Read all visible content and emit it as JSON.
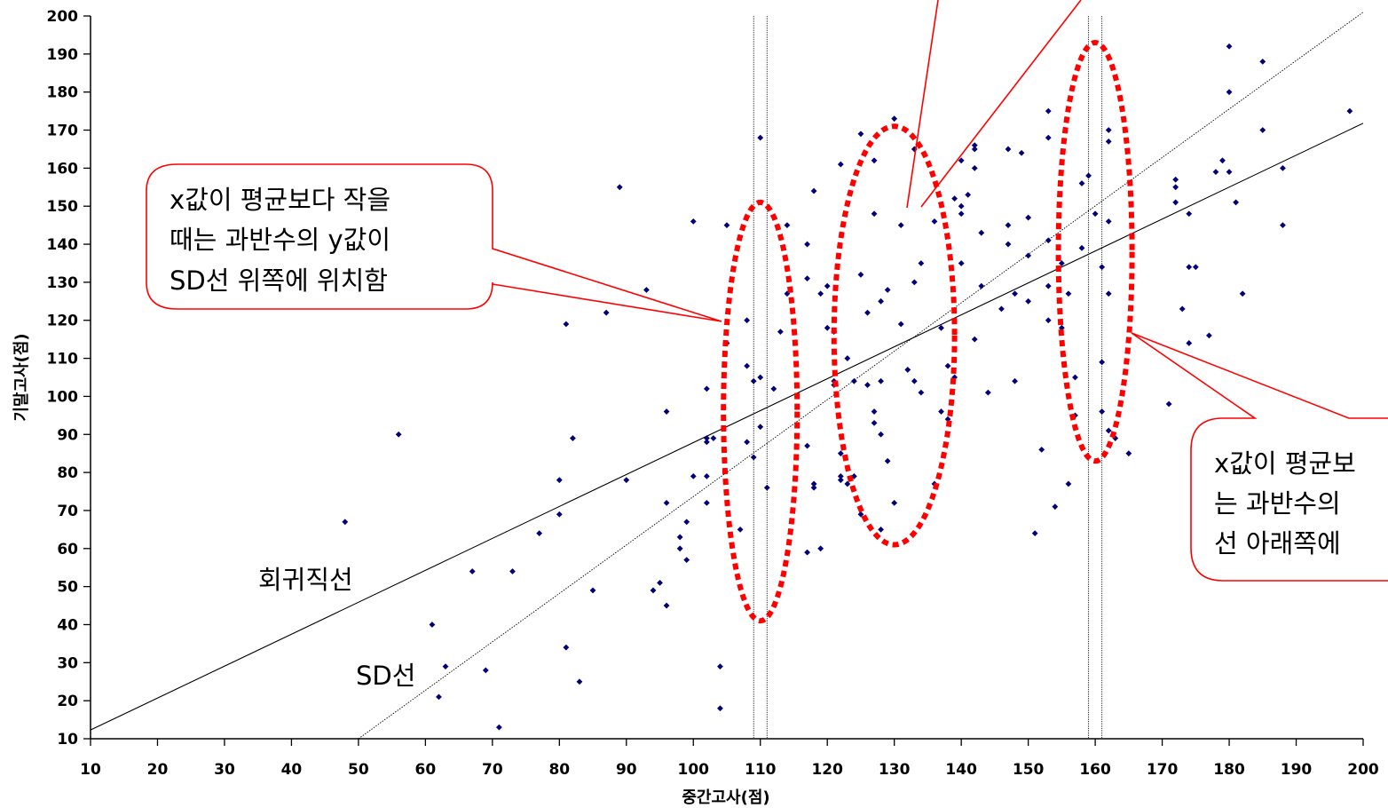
{
  "chart_data": {
    "type": "scatter",
    "xlabel": "중간고사(점)",
    "ylabel": "기말고사(점)",
    "xlim": [
      10,
      200
    ],
    "ylim": [
      10,
      200
    ],
    "xticks": [
      10,
      20,
      30,
      40,
      50,
      60,
      70,
      80,
      90,
      100,
      110,
      120,
      130,
      140,
      150,
      160,
      170,
      180,
      190,
      200
    ],
    "yticks": [
      10,
      20,
      30,
      40,
      50,
      60,
      70,
      80,
      90,
      100,
      110,
      120,
      130,
      140,
      150,
      160,
      170,
      180,
      190,
      200
    ],
    "grid": false,
    "marker_color": "#00007a",
    "highlight_color": "#ff0000",
    "points": [
      [
        48,
        67
      ],
      [
        56,
        90
      ],
      [
        61,
        40
      ],
      [
        62,
        21
      ],
      [
        63,
        29
      ],
      [
        67,
        54
      ],
      [
        69,
        28
      ],
      [
        71,
        13
      ],
      [
        73,
        54
      ],
      [
        77,
        64
      ],
      [
        80,
        78
      ],
      [
        80,
        69
      ],
      [
        81,
        119
      ],
      [
        81,
        34
      ],
      [
        82,
        89
      ],
      [
        83,
        25
      ],
      [
        85,
        49
      ],
      [
        87,
        122
      ],
      [
        89,
        155
      ],
      [
        90,
        78
      ],
      [
        93,
        128
      ],
      [
        94,
        49
      ],
      [
        95,
        51
      ],
      [
        96,
        72
      ],
      [
        96,
        96
      ],
      [
        96,
        45
      ],
      [
        98,
        63
      ],
      [
        98,
        60
      ],
      [
        99,
        67
      ],
      [
        99,
        57
      ],
      [
        100,
        146
      ],
      [
        100,
        79
      ],
      [
        102,
        102
      ],
      [
        102,
        88
      ],
      [
        102,
        89
      ],
      [
        102,
        72
      ],
      [
        102,
        79
      ],
      [
        103,
        89
      ],
      [
        104,
        29
      ],
      [
        104,
        18
      ],
      [
        105,
        145
      ],
      [
        105,
        114
      ],
      [
        107,
        65
      ],
      [
        108,
        120
      ],
      [
        108,
        108
      ],
      [
        108,
        88
      ],
      [
        109,
        104
      ],
      [
        109,
        84
      ],
      [
        110,
        168
      ],
      [
        110,
        105
      ],
      [
        110,
        92
      ],
      [
        111,
        76
      ],
      [
        112,
        102
      ],
      [
        113,
        117
      ],
      [
        114,
        145
      ],
      [
        114,
        127
      ],
      [
        117,
        140
      ],
      [
        117,
        131
      ],
      [
        117,
        87
      ],
      [
        117,
        59
      ],
      [
        118,
        154
      ],
      [
        118,
        77
      ],
      [
        118,
        76
      ],
      [
        119,
        127
      ],
      [
        119,
        60
      ],
      [
        120,
        129
      ],
      [
        120,
        118
      ],
      [
        121,
        117
      ],
      [
        121,
        103
      ],
      [
        121,
        104
      ],
      [
        122,
        161
      ],
      [
        122,
        85
      ],
      [
        122,
        79
      ],
      [
        122,
        78
      ],
      [
        123,
        110
      ],
      [
        123,
        77
      ],
      [
        124,
        104
      ],
      [
        124,
        79
      ],
      [
        125,
        169
      ],
      [
        125,
        132
      ],
      [
        125,
        69
      ],
      [
        126,
        122
      ],
      [
        126,
        103
      ],
      [
        127,
        162
      ],
      [
        127,
        148
      ],
      [
        127,
        96
      ],
      [
        127,
        93
      ],
      [
        128,
        125
      ],
      [
        128,
        104
      ],
      [
        128,
        90
      ],
      [
        128,
        65
      ],
      [
        129,
        128
      ],
      [
        129,
        83
      ],
      [
        130,
        173
      ],
      [
        130,
        72
      ],
      [
        131,
        145
      ],
      [
        131,
        119
      ],
      [
        132,
        107
      ],
      [
        133,
        165
      ],
      [
        133,
        130
      ],
      [
        133,
        104
      ],
      [
        134,
        135
      ],
      [
        134,
        101
      ],
      [
        136,
        146
      ],
      [
        136,
        77
      ],
      [
        137,
        118
      ],
      [
        137,
        96
      ],
      [
        138,
        108
      ],
      [
        138,
        94
      ],
      [
        139,
        152
      ],
      [
        139,
        105
      ],
      [
        140,
        162
      ],
      [
        140,
        150
      ],
      [
        140,
        148
      ],
      [
        140,
        135
      ],
      [
        141,
        153
      ],
      [
        142,
        166
      ],
      [
        142,
        165
      ],
      [
        142,
        160
      ],
      [
        142,
        115
      ],
      [
        143,
        143
      ],
      [
        143,
        129
      ],
      [
        144,
        101
      ],
      [
        146,
        123
      ],
      [
        147,
        165
      ],
      [
        147,
        145
      ],
      [
        147,
        140
      ],
      [
        148,
        127
      ],
      [
        148,
        104
      ],
      [
        149,
        164
      ],
      [
        150,
        147
      ],
      [
        150,
        137
      ],
      [
        150,
        125
      ],
      [
        151,
        64
      ],
      [
        152,
        86
      ],
      [
        153,
        175
      ],
      [
        153,
        168
      ],
      [
        153,
        141
      ],
      [
        153,
        129
      ],
      [
        153,
        120
      ],
      [
        154,
        71
      ],
      [
        155,
        135
      ],
      [
        155,
        118
      ],
      [
        156,
        127
      ],
      [
        156,
        77
      ],
      [
        157,
        105
      ],
      [
        157,
        95
      ],
      [
        158,
        156
      ],
      [
        158,
        139
      ],
      [
        159,
        158
      ],
      [
        160,
        148
      ],
      [
        161,
        134
      ],
      [
        161,
        109
      ],
      [
        161,
        96
      ],
      [
        162,
        170
      ],
      [
        162,
        167
      ],
      [
        162,
        146
      ],
      [
        162,
        127
      ],
      [
        162,
        91
      ],
      [
        163,
        89
      ],
      [
        165,
        85
      ],
      [
        171,
        98
      ],
      [
        172,
        157
      ],
      [
        172,
        155
      ],
      [
        172,
        151
      ],
      [
        173,
        123
      ],
      [
        174,
        148
      ],
      [
        174,
        134
      ],
      [
        174,
        114
      ],
      [
        175,
        134
      ],
      [
        177,
        116
      ],
      [
        178,
        159
      ],
      [
        179,
        162
      ],
      [
        180,
        192
      ],
      [
        180,
        180
      ],
      [
        180,
        159
      ],
      [
        181,
        151
      ],
      [
        182,
        127
      ],
      [
        185,
        188
      ],
      [
        185,
        170
      ],
      [
        188,
        160
      ],
      [
        188,
        145
      ],
      [
        198,
        175
      ]
    ],
    "lines": [
      {
        "name": "회귀직선",
        "start": [
          10,
          12.3
        ],
        "end": [
          200,
          171.8
        ],
        "style": "solid"
      },
      {
        "name": "SD선",
        "start": [
          50,
          10
        ],
        "end": [
          200,
          201
        ],
        "style": "dotted"
      }
    ],
    "vertical_guides": [
      109,
      111,
      159,
      161
    ],
    "ellipses": [
      {
        "cx": 110,
        "cy": 96,
        "rx": 5.5,
        "ry": 55
      },
      {
        "cx": 130,
        "cy": 116,
        "rx": 9,
        "ry": 55
      },
      {
        "cx": 160,
        "cy": 138,
        "rx": 5.5,
        "ry": 55
      }
    ]
  },
  "annotations": {
    "left_callout": [
      "x값이 평균보다 작을",
      "때는 과반수의 y값이",
      "SD선 위쪽에 위치함"
    ],
    "right_callout": [
      "x값이 평균보",
      "는 과반수의",
      "선 아래쪽에"
    ],
    "regression_label": "회귀직선",
    "sd_label": "SD선"
  }
}
